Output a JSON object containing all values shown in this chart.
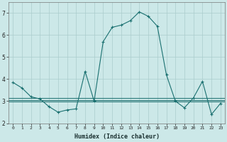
{
  "xlabel": "Humidex (Indice chaleur)",
  "ylabel": "",
  "background_color": "#cce8e8",
  "grid_color": "#aacccc",
  "line_color": "#1a7070",
  "x_main": [
    0,
    1,
    2,
    3,
    4,
    5,
    6,
    7,
    8,
    9,
    10,
    11,
    12,
    13,
    14,
    15,
    16,
    17,
    18,
    19,
    20,
    21,
    22,
    23
  ],
  "y_main": [
    3.85,
    3.6,
    3.2,
    3.1,
    2.75,
    2.5,
    2.6,
    2.65,
    4.35,
    3.0,
    5.7,
    6.35,
    6.45,
    6.65,
    7.05,
    6.85,
    6.4,
    4.2,
    3.0,
    2.7,
    3.15,
    3.9,
    2.4,
    2.9
  ],
  "y_flat1": 3.15,
  "y_flat2": 3.05,
  "y_flat3": 2.98,
  "xlim": [
    -0.5,
    23.5
  ],
  "ylim": [
    2.0,
    7.5
  ],
  "yticks": [
    2,
    3,
    4,
    5,
    6,
    7
  ],
  "xticks": [
    0,
    1,
    2,
    3,
    4,
    5,
    6,
    7,
    8,
    9,
    10,
    11,
    12,
    13,
    14,
    15,
    16,
    17,
    18,
    19,
    20,
    21,
    22,
    23
  ]
}
